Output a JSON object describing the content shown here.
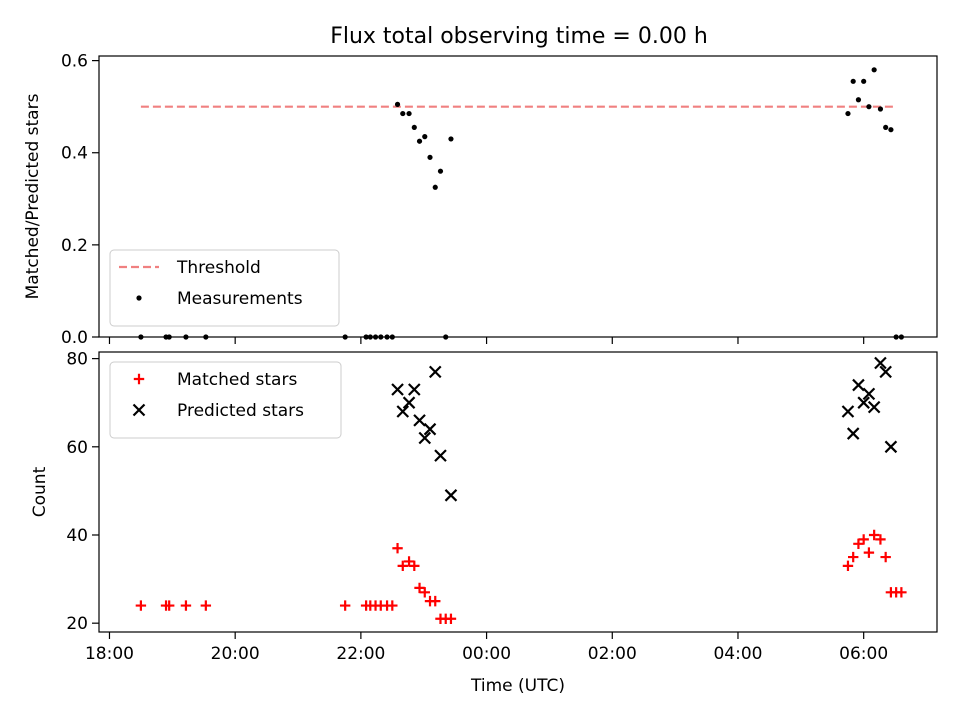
{
  "chart_data": [
    {
      "type": "scatter",
      "title": "Flux total observing time = 0.00 h",
      "xlabel": "",
      "ylabel": "Matched/Predicted stars",
      "ylim": [
        0,
        0.61
      ],
      "xlim": [
        "17:50",
        "07:10"
      ],
      "y_ticks": [
        "0.0",
        "0.2",
        "0.4",
        "0.6"
      ],
      "legend": {
        "placement": "lower-left",
        "entries": [
          "Threshold",
          "Measurements"
        ]
      },
      "threshold": {
        "name": "Threshold",
        "y": 0.5,
        "x_start": "18:30",
        "x_end": "06:30",
        "color": "#f08080",
        "style": "dashed"
      },
      "series": [
        {
          "name": "Measurements",
          "color": "#000000",
          "marker": "dot",
          "points": [
            [
              "18:30",
              0
            ],
            [
              "18:54",
              0
            ],
            [
              "18:57",
              0
            ],
            [
              "19:13",
              0
            ],
            [
              "19:32",
              0
            ],
            [
              "21:45",
              0
            ],
            [
              "22:05",
              0
            ],
            [
              "22:09",
              0
            ],
            [
              "22:14",
              0
            ],
            [
              "22:19",
              0
            ],
            [
              "22:25",
              0
            ],
            [
              "22:30",
              0
            ],
            [
              "22:35",
              0.505
            ],
            [
              "22:40",
              0.485
            ],
            [
              "22:46",
              0.485
            ],
            [
              "22:51",
              0.455
            ],
            [
              "22:56",
              0.425
            ],
            [
              "23:01",
              0.435
            ],
            [
              "23:06",
              0.39
            ],
            [
              "23:11",
              0.325
            ],
            [
              "23:16",
              0.36
            ],
            [
              "23:21",
              0
            ],
            [
              "23:26",
              0.43
            ],
            [
              "05:45",
              0.485
            ],
            [
              "05:50",
              0.555
            ],
            [
              "05:55",
              0.515
            ],
            [
              "06:00",
              0.555
            ],
            [
              "06:05",
              0.5
            ],
            [
              "06:10",
              0.58
            ],
            [
              "06:16",
              0.495
            ],
            [
              "06:21",
              0.455
            ],
            [
              "06:26",
              0.45
            ],
            [
              "06:31",
              0
            ],
            [
              "06:36",
              0
            ]
          ]
        }
      ]
    },
    {
      "type": "scatter",
      "title": "",
      "xlabel": "Time (UTC)",
      "ylabel": "Count",
      "ylim": [
        18,
        81.5
      ],
      "xlim": [
        "17:50",
        "07:10"
      ],
      "x_ticks": [
        "18:00",
        "20:00",
        "22:00",
        "00:00",
        "02:00",
        "04:00",
        "06:00"
      ],
      "y_ticks": [
        "20",
        "40",
        "60",
        "80"
      ],
      "legend": {
        "placement": "top-left",
        "entries": [
          "Matched stars",
          "Predicted stars"
        ]
      },
      "series": [
        {
          "name": "Matched stars",
          "color": "#ff0000",
          "marker": "plus",
          "points": [
            [
              "18:30",
              24
            ],
            [
              "18:54",
              24
            ],
            [
              "18:57",
              24
            ],
            [
              "19:13",
              24
            ],
            [
              "19:32",
              24
            ],
            [
              "21:45",
              24
            ],
            [
              "22:05",
              24
            ],
            [
              "22:09",
              24
            ],
            [
              "22:14",
              24
            ],
            [
              "22:19",
              24
            ],
            [
              "22:25",
              24
            ],
            [
              "22:30",
              24
            ],
            [
              "22:35",
              37
            ],
            [
              "22:40",
              33
            ],
            [
              "22:46",
              34
            ],
            [
              "22:51",
              33
            ],
            [
              "22:56",
              28
            ],
            [
              "23:01",
              27
            ],
            [
              "23:06",
              25
            ],
            [
              "23:11",
              25
            ],
            [
              "23:16",
              21
            ],
            [
              "23:21",
              21
            ],
            [
              "23:26",
              21
            ],
            [
              "05:45",
              33
            ],
            [
              "05:50",
              35
            ],
            [
              "05:55",
              38
            ],
            [
              "06:00",
              39
            ],
            [
              "06:05",
              36
            ],
            [
              "06:10",
              40
            ],
            [
              "06:16",
              39
            ],
            [
              "06:21",
              35
            ],
            [
              "06:26",
              27
            ],
            [
              "06:31",
              27
            ],
            [
              "06:36",
              27
            ]
          ]
        },
        {
          "name": "Predicted stars",
          "color": "#000000",
          "marker": "x",
          "points": [
            [
              "22:35",
              73
            ],
            [
              "22:40",
              68
            ],
            [
              "22:46",
              70
            ],
            [
              "22:51",
              73
            ],
            [
              "22:56",
              66
            ],
            [
              "23:01",
              62
            ],
            [
              "23:06",
              64
            ],
            [
              "23:11",
              77
            ],
            [
              "23:16",
              58
            ],
            [
              "23:26",
              49
            ],
            [
              "05:45",
              68
            ],
            [
              "05:50",
              63
            ],
            [
              "05:55",
              74
            ],
            [
              "06:00",
              70
            ],
            [
              "06:05",
              72
            ],
            [
              "06:10",
              69
            ],
            [
              "06:16",
              79
            ],
            [
              "06:21",
              77
            ],
            [
              "06:26",
              60
            ]
          ]
        }
      ]
    }
  ]
}
